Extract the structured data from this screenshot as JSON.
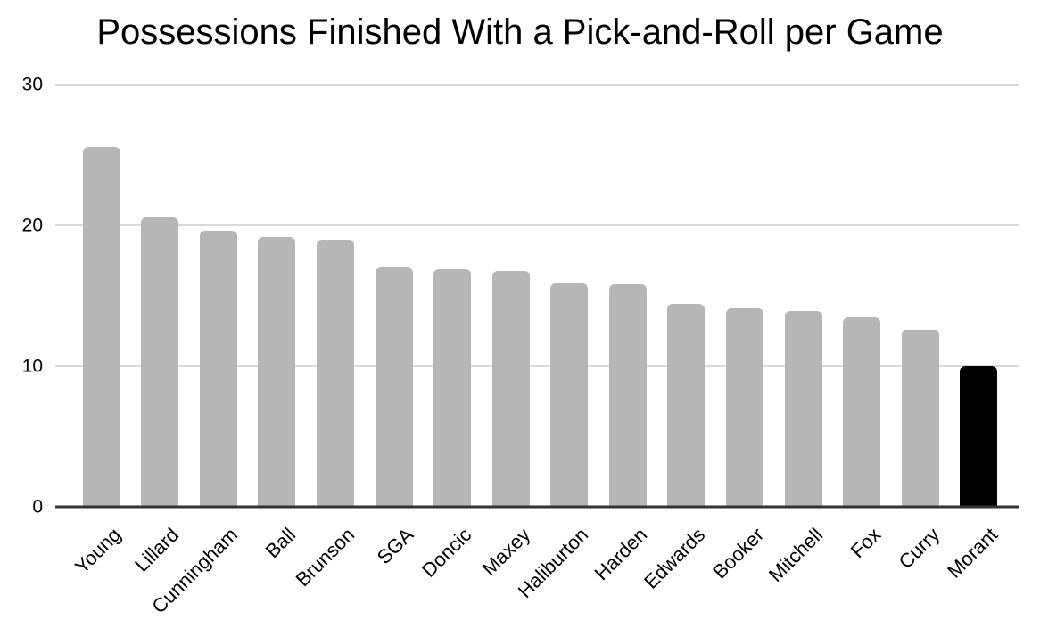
{
  "chart_data": {
    "type": "bar",
    "title": "Possessions Finished With a Pick-and-Roll per Game",
    "categories": [
      "Young",
      "Lillard",
      "Cunningham",
      "Ball",
      "Brunson",
      "SGA",
      "Doncic",
      "Maxey",
      "Haliburton",
      "Harden",
      "Edwards",
      "Booker",
      "Mitchell",
      "Fox",
      "Curry",
      "Morant"
    ],
    "values": [
      25.6,
      20.6,
      19.6,
      19.2,
      19.0,
      17.0,
      16.9,
      16.8,
      15.9,
      15.8,
      14.4,
      14.1,
      13.9,
      13.5,
      12.6,
      10.0
    ],
    "highlighted_category": "Morant",
    "xlabel": "",
    "ylabel": "",
    "ylim": [
      0,
      30
    ],
    "yticks": [
      0,
      10,
      20,
      30
    ],
    "grid": true,
    "legend": "none",
    "bar_style": "rounded-top"
  },
  "colors": {
    "background": "#ffffff",
    "bar_default": "#b6b6b6",
    "bar_highlight": "#000000",
    "gridline": "#d9d9d9",
    "axis_line": "#333333",
    "text": "#000000"
  }
}
